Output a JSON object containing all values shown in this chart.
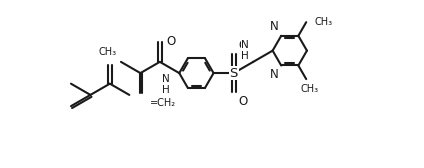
{
  "bg": "#ffffff",
  "lc": "#1a1a1a",
  "lw": 1.5,
  "fs": 8.5,
  "xlim": [
    -0.3,
    10.5
  ],
  "ylim": [
    -0.8,
    4.5
  ]
}
